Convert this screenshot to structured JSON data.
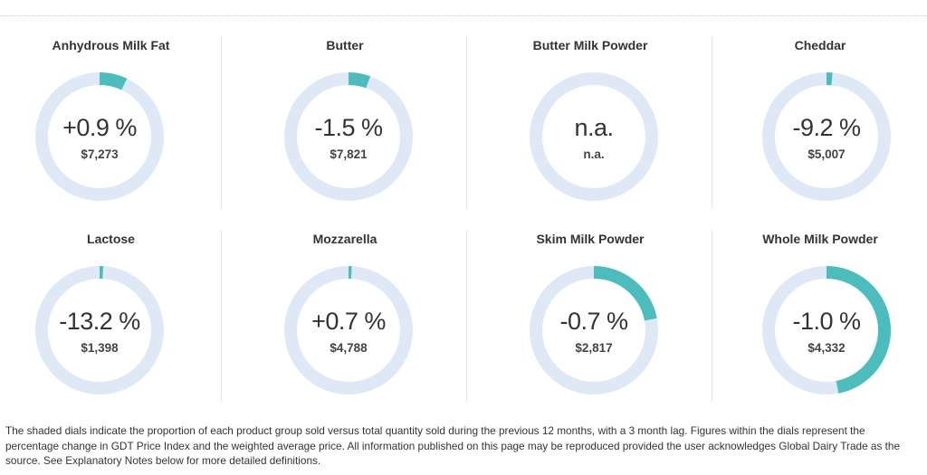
{
  "colors": {
    "track": "#dfe8f5",
    "fill": "#4cbdbd"
  },
  "products": [
    {
      "name": "Anhydrous Milk Fat",
      "change": "+0.9 %",
      "price": "$7,273",
      "share": 0.07
    },
    {
      "name": "Butter",
      "change": "-1.5 %",
      "price": "$7,821",
      "share": 0.055
    },
    {
      "name": "Butter Milk Powder",
      "change": "n.a.",
      "price": "n.a.",
      "share": 0
    },
    {
      "name": "Cheddar",
      "change": "-9.2 %",
      "price": "$5,007",
      "share": 0.015
    },
    {
      "name": "Lactose",
      "change": "-13.2 %",
      "price": "$1,398",
      "share": 0.009
    },
    {
      "name": "Mozzarella",
      "change": "+0.7 %",
      "price": "$4,788",
      "share": 0.008
    },
    {
      "name": "Skim Milk Powder",
      "change": "-0.7 %",
      "price": "$2,817",
      "share": 0.22
    },
    {
      "name": "Whole Milk Powder",
      "change": "-1.0 %",
      "price": "$4,332",
      "share": 0.47
    }
  ],
  "footnote": "The shaded dials indicate the proportion of each product group sold versus total quantity sold during the previous 12 months, with a 3 month lag. Figures within the dials represent the percentage change in GDT Price Index and the weighted average price. All information published on this page may be reproduced provided the user acknowledges Global Dairy Trade as the source. See Explanatory Notes below for more detailed definitions."
}
